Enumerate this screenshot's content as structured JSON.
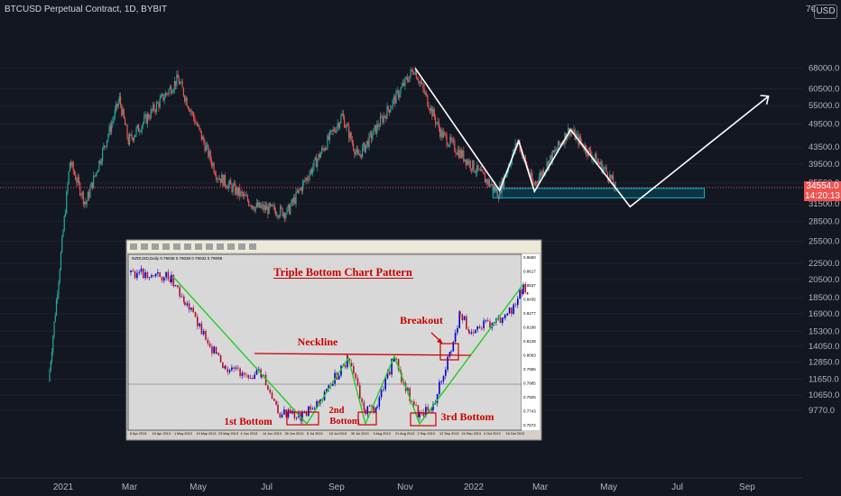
{
  "header": {
    "symbol_title": "BTCUSD Perpetual Contract, 1D, BYBIT",
    "currency": "USD",
    "top_price_partial": "7€"
  },
  "colors": {
    "background": "#131722",
    "up_candle": "#26a69a",
    "down_candle": "#ef5350",
    "price_line": "#ef5350",
    "pattern_lines": "#ffffff",
    "support_zone": "#00bcd4",
    "inset_background": "#d4d0c8",
    "inset_green_lines": "#22cc22",
    "inset_red": "#cc0000"
  },
  "chart_data": {
    "type": "candlestick",
    "y_scale": "log",
    "y_ticks": [
      "68000.0",
      "60500.0",
      "55000.0",
      "49500.0",
      "43500.0",
      "39500.0",
      "35500.0",
      "31500.0",
      "28500.0",
      "25500.0",
      "22500.0",
      "20500.0",
      "18500.0",
      "16900.0",
      "15300.0",
      "14050.0",
      "12850.0",
      "11650.0",
      "10650.0",
      "9770.0"
    ],
    "x_ticks": [
      "2021",
      "Mar",
      "May",
      "Jul",
      "Sep",
      "Nov",
      "2022",
      "Mar",
      "May",
      "Jul",
      "Sep"
    ],
    "last_price": "34554.0",
    "countdown": "14:20:13",
    "price_path": [
      {
        "t": "2020-12-20",
        "p": 11500
      },
      {
        "t": "2021-01-08",
        "p": 40000
      },
      {
        "t": "2021-01-22",
        "p": 31500
      },
      {
        "t": "2021-02-21",
        "p": 57000
      },
      {
        "t": "2021-03-01",
        "p": 45000
      },
      {
        "t": "2021-04-14",
        "p": 64000
      },
      {
        "t": "2021-05-19",
        "p": 37000
      },
      {
        "t": "2021-06-22",
        "p": 31000
      },
      {
        "t": "2021-07-20",
        "p": 30000
      },
      {
        "t": "2021-09-07",
        "p": 52000
      },
      {
        "t": "2021-09-21",
        "p": 41000
      },
      {
        "t": "2021-11-10",
        "p": 68000
      },
      {
        "t": "2021-12-04",
        "p": 47000
      },
      {
        "t": "2022-01-24",
        "p": 33500
      },
      {
        "t": "2022-02-10",
        "p": 45000
      },
      {
        "t": "2022-02-24",
        "p": 35000
      },
      {
        "t": "2022-03-28",
        "p": 48000
      },
      {
        "t": "2022-05-01",
        "p": 37500
      },
      {
        "t": "2022-05-08",
        "p": 34554
      }
    ],
    "projection_path": [
      {
        "t": "2021-11-10",
        "p": 68000
      },
      {
        "t": "2022-01-24",
        "p": 34000
      },
      {
        "t": "2022-02-10",
        "p": 45000
      },
      {
        "t": "2022-02-24",
        "p": 33800
      },
      {
        "t": "2022-03-28",
        "p": 48000
      },
      {
        "t": "2022-05-20",
        "p": 31000
      },
      {
        "t": "2022-09-20",
        "p": 58000
      }
    ],
    "support_zone": {
      "t_start": "2022-01-18",
      "t_end": "2022-07-25",
      "p_low": 32600,
      "p_high": 34400
    }
  },
  "inset": {
    "title": "Triple Bottom Chart Pattern",
    "symbol_line": "NZDUSD,Daily  0.79038 0.79038 0.79032 0.79089",
    "neckline_label": "Neckline",
    "breakout_label": "Breakout",
    "bottom1_label": "1st Bottom",
    "bottom2_label_line1": "2nd",
    "bottom2_label_line2": "Bottom",
    "bottom3_label": "3rd Bottom",
    "x_ticks": [
      "8 Apr 2013",
      "19 Apr 2013",
      "1 May 2013",
      "13 May 2013",
      "23 May 2013",
      "4 Jun 2013",
      "14 Jun 2013",
      "26 Jun 2013",
      "8 Jul 2013",
      "18 Jul 2013",
      "30 Jul 2013",
      "9 Aug 2013",
      "21 Aug 2013",
      "2 Sep 2013",
      "12 Sep 2013",
      "24 Sep 2013",
      "4 Oct 2013",
      "16 Oct 2013"
    ],
    "y_ticks": [
      "0.8650",
      "0.8617",
      "0.8537",
      "0.8435",
      "0.8277",
      "0.8198",
      "0.8128",
      "0.8063",
      "0.7955",
      "0.7885",
      "0.7825",
      "0.7743",
      "0.7672"
    ]
  }
}
